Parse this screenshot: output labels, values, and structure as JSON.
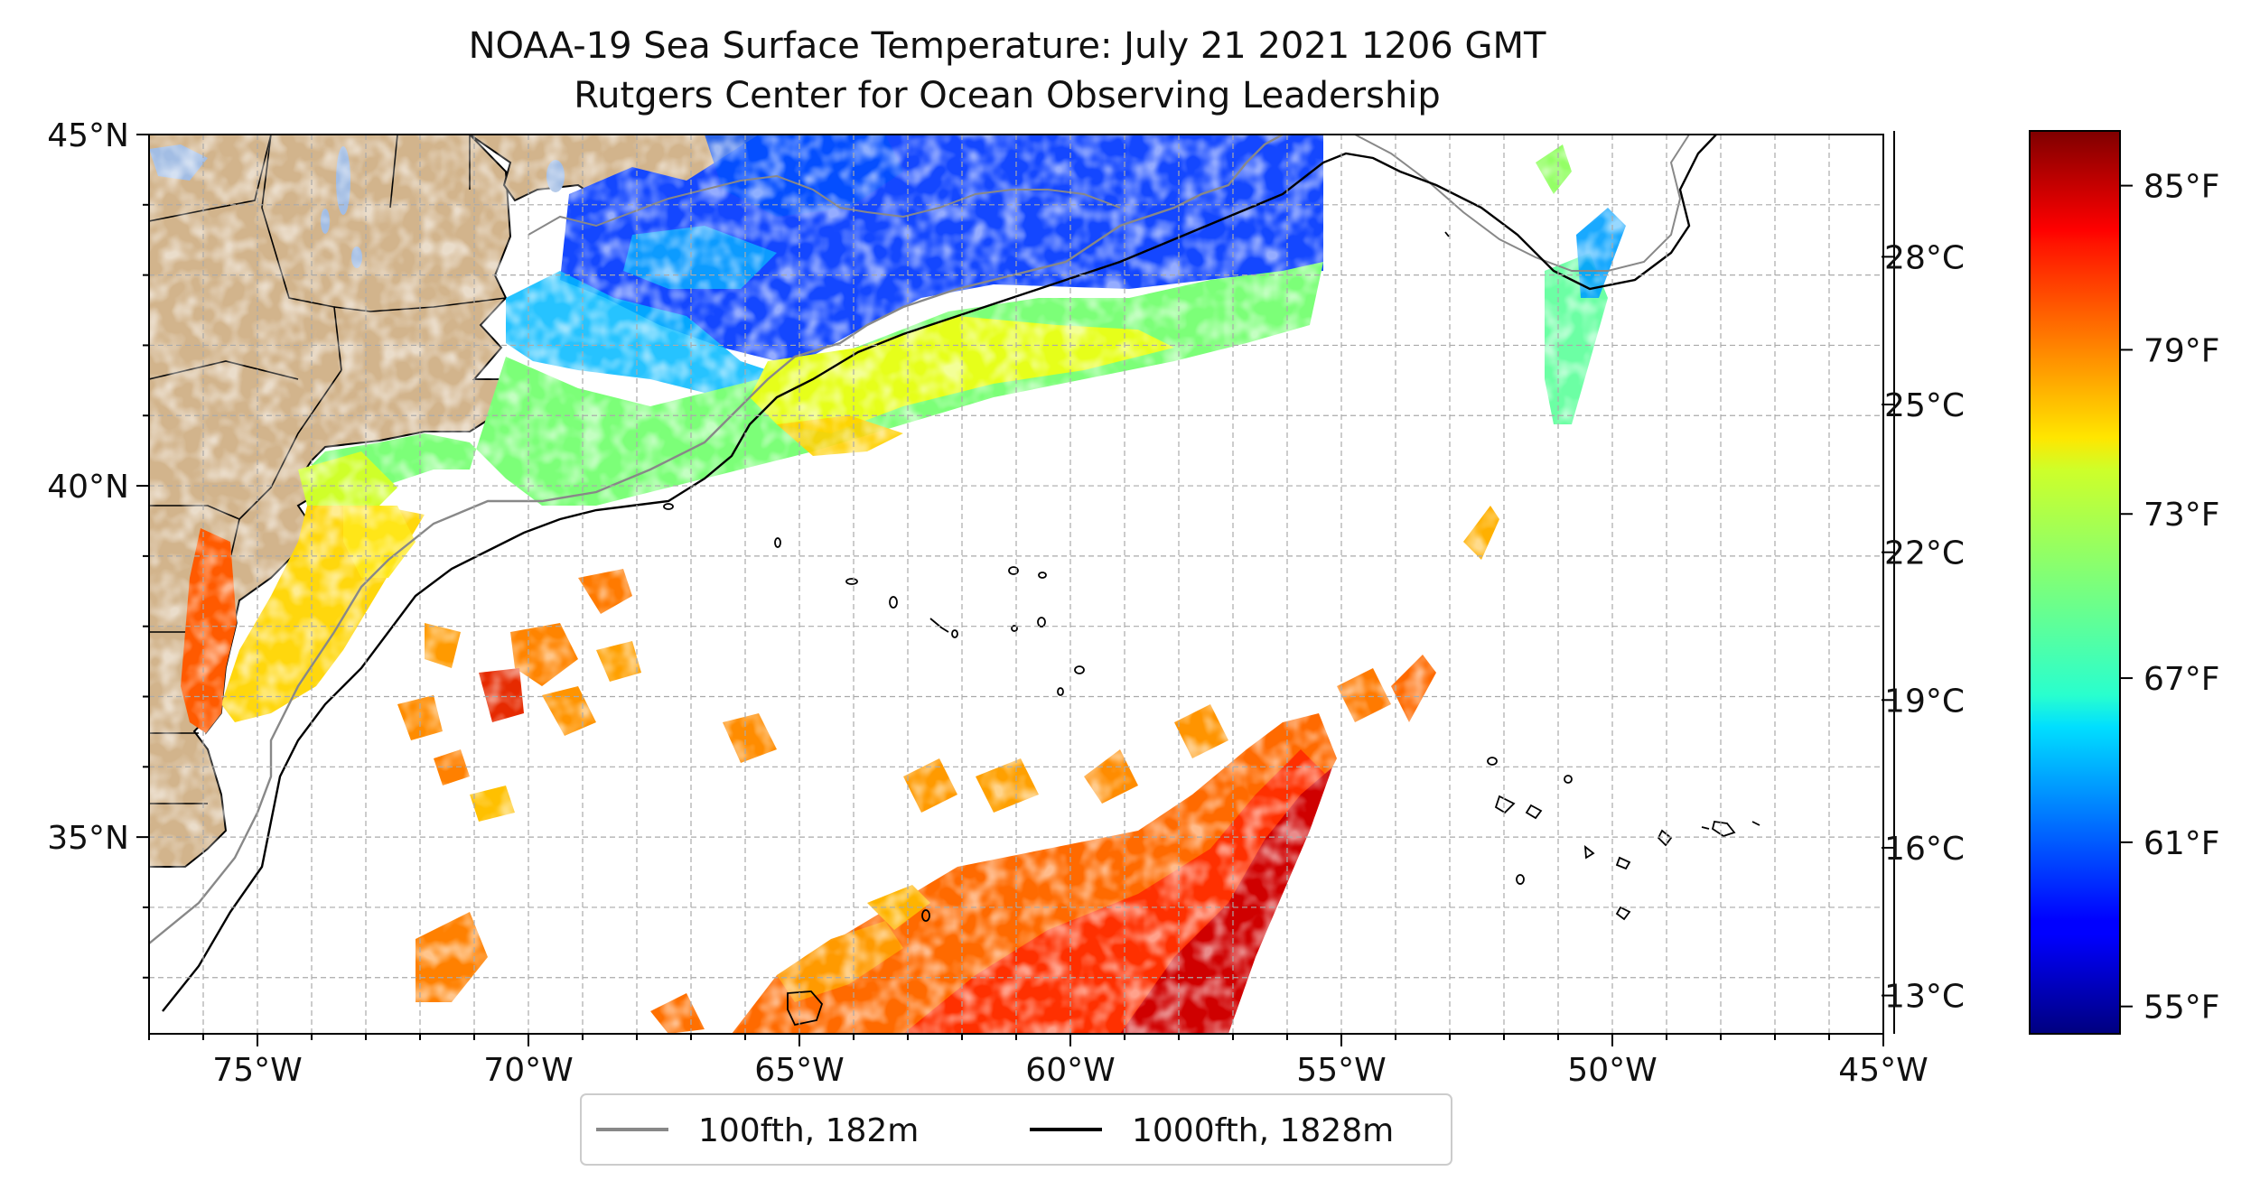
{
  "title": {
    "line1": "NOAA-19 Sea Surface Temperature: July 21 2021 1206 GMT",
    "line2": "Rutgers Center for Ocean Observing Leadership"
  },
  "map": {
    "extent": {
      "lon_min": -77,
      "lon_max": -45,
      "lat_min": 32.2,
      "lat_max": 45
    },
    "lon_ticks": [
      {
        "value": -75,
        "label": "75°W"
      },
      {
        "value": -70,
        "label": "70°W"
      },
      {
        "value": -65,
        "label": "65°W"
      },
      {
        "value": -60,
        "label": "60°W"
      },
      {
        "value": -55,
        "label": "55°W"
      },
      {
        "value": -50,
        "label": "50°W"
      },
      {
        "value": -45,
        "label": "45°W"
      }
    ],
    "lat_ticks": [
      {
        "value": 45,
        "label": "45°N"
      },
      {
        "value": 40,
        "label": "40°N"
      },
      {
        "value": 35,
        "label": "35°N"
      }
    ],
    "grid": "dashed, every 1 degree",
    "land_color": "#d2b48c",
    "lake_color": "#a2bde4",
    "no_data_color": "#ffffff"
  },
  "legend": {
    "placement": "bottom-center, below map",
    "items": [
      {
        "label": "100fth, 182m",
        "color": "#888888"
      },
      {
        "label": "1000fth, 1828m",
        "color": "#000000"
      }
    ]
  },
  "colorbar": {
    "colormap": "jet",
    "range_f": [
      54,
      87
    ],
    "fahrenheit_ticks": [
      {
        "value": 55,
        "label": "55°F"
      },
      {
        "value": 61,
        "label": "61°F"
      },
      {
        "value": 67,
        "label": "67°F"
      },
      {
        "value": 73,
        "label": "73°F"
      },
      {
        "value": 79,
        "label": "79°F"
      },
      {
        "value": 85,
        "label": "85°F"
      }
    ],
    "celsius_ticks": [
      {
        "value": 13,
        "label": "13°C"
      },
      {
        "value": 16,
        "label": "16°C"
      },
      {
        "value": 19,
        "label": "19°C"
      },
      {
        "value": 22,
        "label": "22°C"
      },
      {
        "value": 25,
        "label": "25°C"
      },
      {
        "value": 28,
        "label": "28°C"
      }
    ]
  }
}
